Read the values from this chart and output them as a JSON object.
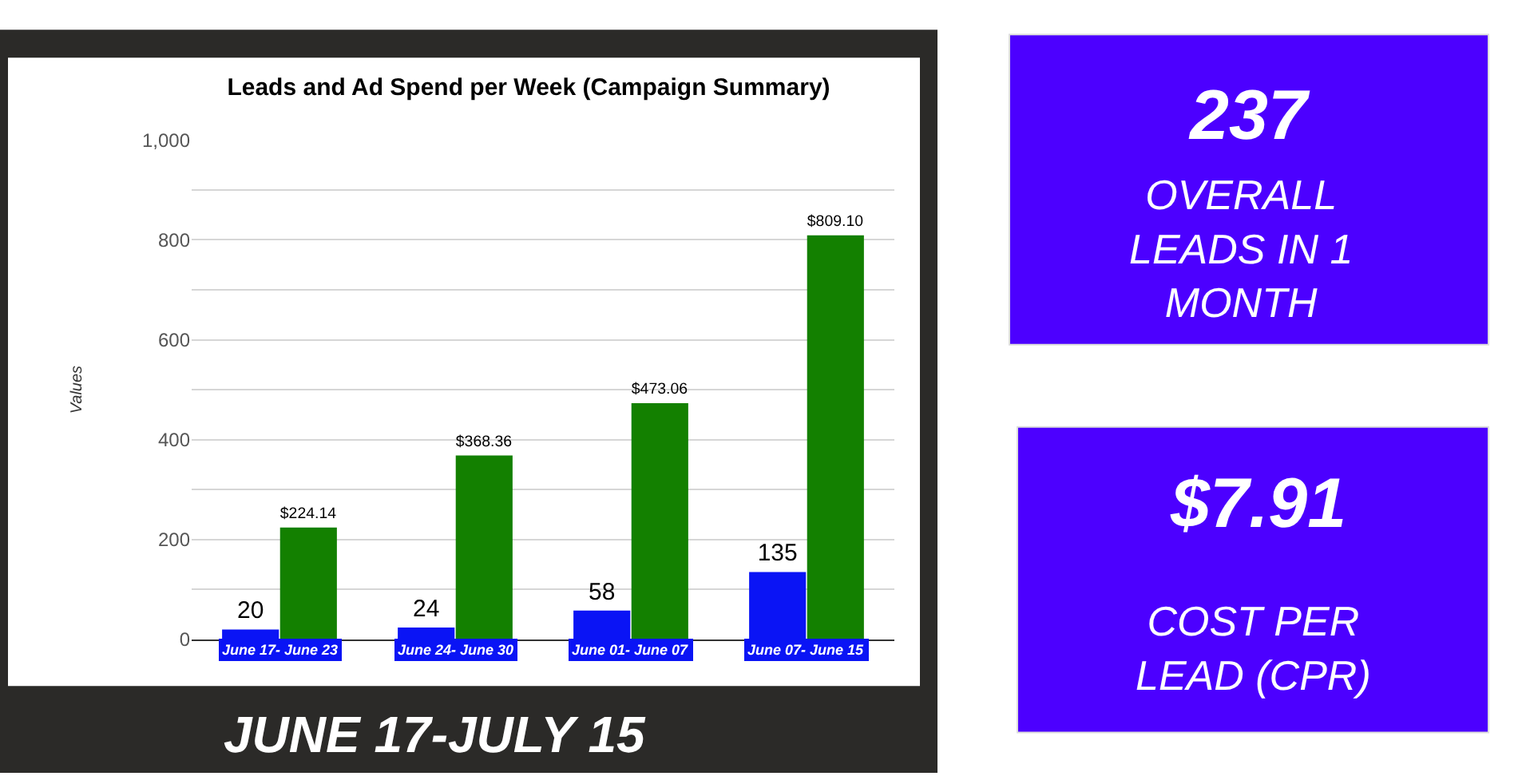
{
  "chart_data": {
    "type": "bar",
    "title": "Leads and Ad Spend per Week (Campaign Summary)",
    "ylabel": "Values",
    "categories": [
      "June 17- June 23",
      "June 24- June 30",
      "June 01- June 07",
      "June 07- June 15"
    ],
    "series": [
      {
        "color": "#0a14f5",
        "values": [
          20,
          24,
          58,
          135
        ],
        "value_labels": [
          "20",
          "24",
          "58",
          "135"
        ]
      },
      {
        "color": "#138000",
        "values": [
          224.14,
          368.36,
          473.06,
          809.1
        ],
        "value_labels": [
          "$224.14",
          "$368.36",
          "$473.06",
          "$809.10"
        ]
      }
    ],
    "ylim": [
      0,
      1000
    ],
    "yticks": [
      0,
      {
        "value": 100,
        "label": null
      },
      {
        "value": 200,
        "label": "200"
      },
      {
        "value": 300,
        "label": null
      },
      {
        "value": 400,
        "label": "400"
      },
      {
        "value": 500,
        "label": null
      },
      {
        "value": 600,
        "label": "600"
      },
      {
        "value": 700,
        "label": null
      },
      {
        "value": 800,
        "label": "800"
      },
      {
        "value": 900,
        "label": null
      },
      {
        "value": 1000,
        "label": "1,000"
      }
    ],
    "grid": "y",
    "legend": false,
    "annotations": [
      "JUNE 17-JULY 15",
      "237",
      "OVERALL LEADS IN 1 MONTH",
      "$7.91",
      "COST PER LEAD (CPR)"
    ]
  }
}
